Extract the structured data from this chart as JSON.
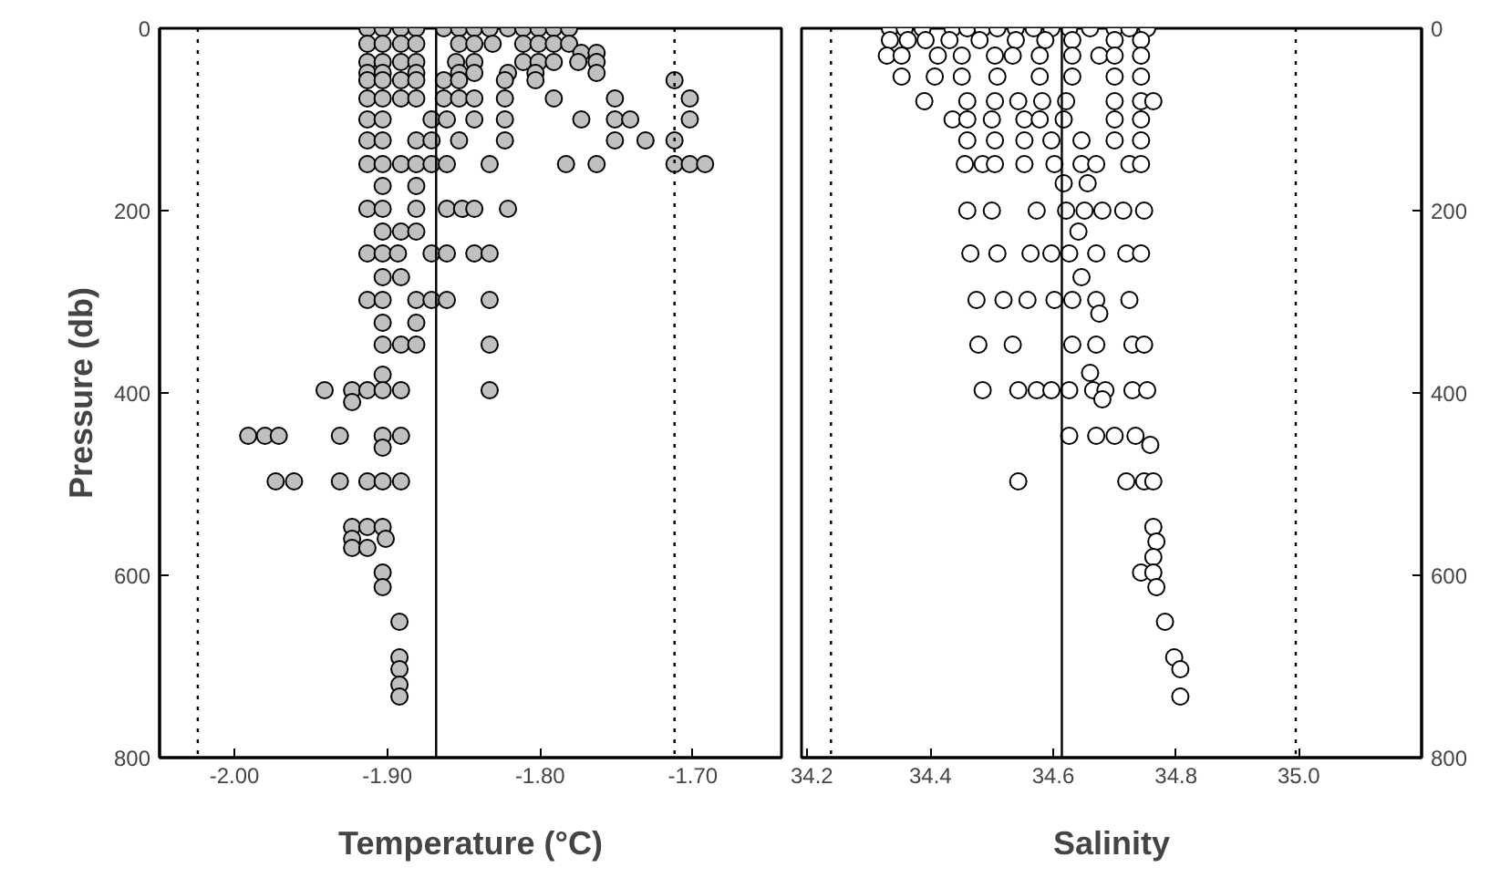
{
  "chart_data": [
    {
      "type": "scatter",
      "xlabel": "Temperature (°C)",
      "ylabel": "Pressure (db)",
      "marker": "circle",
      "grid": false,
      "xlim": [
        -2.049,
        -1.642
      ],
      "xticks": [
        {
          "value": -2.0,
          "label": "-2.00"
        },
        {
          "value": -1.9,
          "label": "-1.90"
        },
        {
          "value": -1.8,
          "label": "-1.80"
        },
        {
          "value": -1.7,
          "label": "-1.70"
        }
      ],
      "ylim": [
        800,
        0
      ],
      "yticks": [
        0,
        200,
        400,
        600,
        800
      ],
      "ref_lines": [
        {
          "axis": "x",
          "value": -2.024,
          "line_style": "dotted"
        },
        {
          "axis": "x",
          "value": -1.868,
          "line_style": "solid"
        },
        {
          "axis": "x",
          "value": -1.712,
          "line_style": "dotted"
        }
      ],
      "series": [
        {
          "color": "#c0c0c0",
          "x": [
            -1.913,
            -1.903,
            -1.891,
            -1.881,
            -1.863,
            -1.853,
            -1.843,
            -1.833,
            -1.821,
            -1.811,
            -1.801,
            -1.791,
            -1.781,
            -1.913,
            -1.903,
            -1.891,
            -1.881,
            -1.853,
            -1.843,
            -1.831,
            -1.811,
            -1.801,
            -1.791,
            -1.781,
            -1.773,
            -1.763,
            -1.913,
            -1.903,
            -1.891,
            -1.881,
            -1.855,
            -1.843,
            -1.811,
            -1.801,
            -1.791,
            -1.775,
            -1.763,
            -1.913,
            -1.903,
            -1.881,
            -1.853,
            -1.843,
            -1.821,
            -1.803,
            -1.763,
            -1.913,
            -1.903,
            -1.891,
            -1.881,
            -1.863,
            -1.853,
            -1.823,
            -1.803,
            -1.712,
            -1.913,
            -1.903,
            -1.891,
            -1.881,
            -1.863,
            -1.853,
            -1.843,
            -1.823,
            -1.791,
            -1.751,
            -1.702,
            -1.913,
            -1.903,
            -1.871,
            -1.861,
            -1.843,
            -1.823,
            -1.773,
            -1.751,
            -1.741,
            -1.702,
            -1.913,
            -1.903,
            -1.881,
            -1.871,
            -1.853,
            -1.823,
            -1.751,
            -1.731,
            -1.712,
            -1.913,
            -1.903,
            -1.891,
            -1.881,
            -1.871,
            -1.861,
            -1.833,
            -1.783,
            -1.763,
            -1.712,
            -1.702,
            -1.692,
            -1.903,
            -1.881,
            -1.913,
            -1.903,
            -1.881,
            -1.861,
            -1.851,
            -1.843,
            -1.821,
            -1.903,
            -1.891,
            -1.881,
            -1.913,
            -1.903,
            -1.893,
            -1.871,
            -1.861,
            -1.843,
            -1.833,
            -1.903,
            -1.891,
            -1.913,
            -1.903,
            -1.881,
            -1.871,
            -1.861,
            -1.833,
            -1.903,
            -1.881,
            -1.903,
            -1.891,
            -1.881,
            -1.833,
            -1.903,
            -1.941,
            -1.923,
            -1.913,
            -1.903,
            -1.891,
            -1.833,
            -1.923,
            -1.991,
            -1.98,
            -1.971,
            -1.931,
            -1.903,
            -1.891,
            -1.903,
            -1.973,
            -1.961,
            -1.931,
            -1.913,
            -1.903,
            -1.891,
            -1.923,
            -1.913,
            -1.903,
            -1.923,
            -1.901,
            -1.923,
            -1.913,
            -1.903,
            -1.903,
            -1.892,
            -1.892,
            -1.892,
            -1.892,
            -1.892
          ],
          "values": [
            0,
            0,
            0,
            0,
            0,
            0,
            0,
            0,
            0,
            0,
            0,
            0,
            0,
            17,
            17,
            17,
            17,
            17,
            17,
            17,
            17,
            17,
            17,
            17,
            27,
            27,
            37,
            37,
            37,
            37,
            37,
            37,
            37,
            37,
            37,
            37,
            37,
            49,
            49,
            49,
            49,
            49,
            49,
            49,
            49,
            57,
            57,
            57,
            57,
            57,
            57,
            57,
            57,
            57,
            77,
            77,
            77,
            77,
            77,
            77,
            77,
            77,
            77,
            77,
            77,
            100,
            100,
            100,
            100,
            100,
            100,
            100,
            100,
            100,
            100,
            123,
            123,
            123,
            123,
            123,
            123,
            123,
            123,
            123,
            149,
            149,
            149,
            149,
            149,
            149,
            149,
            149,
            149,
            149,
            149,
            149,
            173,
            173,
            198,
            198,
            198,
            198,
            198,
            198,
            198,
            223,
            223,
            223,
            247,
            247,
            247,
            247,
            247,
            247,
            247,
            273,
            273,
            298,
            298,
            298,
            298,
            298,
            298,
            323,
            323,
            347,
            347,
            347,
            347,
            380,
            397,
            397,
            397,
            397,
            397,
            397,
            410,
            447,
            447,
            447,
            447,
            447,
            447,
            460,
            497,
            497,
            497,
            497,
            497,
            497,
            547,
            547,
            547,
            560,
            560,
            570,
            570,
            597,
            613,
            651,
            690,
            703,
            720,
            733
          ]
        }
      ]
    },
    {
      "type": "scatter",
      "xlabel": "Salinity",
      "marker": "circle",
      "grid": false,
      "xlim": [
        34.19,
        35.2
      ],
      "xticks": [
        34.2,
        34.4,
        34.6,
        34.8,
        {
          "value": 35.0,
          "label": "35.0"
        }
      ],
      "ylim": [
        800,
        0
      ],
      "yticks": [
        0,
        200,
        400,
        600,
        800
      ],
      "ref_lines": [
        {
          "axis": "x",
          "value": 34.238,
          "line_style": "dotted"
        },
        {
          "axis": "x",
          "value": 34.614,
          "line_style": "solid"
        },
        {
          "axis": "x",
          "value": 34.995,
          "line_style": "dotted"
        }
      ],
      "series": [
        {
          "color": "#ffffff",
          "x": [
            34.334,
            34.358,
            34.387,
            34.436,
            34.46,
            34.485,
            34.509,
            34.539,
            34.568,
            34.597,
            34.626,
            34.66,
            34.7,
            34.724,
            34.753,
            34.334,
            34.363,
            34.392,
            34.431,
            34.48,
            34.539,
            34.587,
            34.631,
            34.7,
            34.743,
            34.329,
            34.353,
            34.412,
            34.451,
            34.505,
            34.534,
            34.578,
            34.631,
            34.675,
            34.7,
            34.743,
            34.353,
            34.407,
            34.451,
            34.509,
            34.578,
            34.631,
            34.7,
            34.743,
            34.39,
            34.46,
            34.505,
            34.543,
            34.582,
            34.621,
            34.7,
            34.743,
            34.763,
            34.436,
            34.46,
            34.5,
            34.553,
            34.578,
            34.617,
            34.7,
            34.743,
            34.46,
            34.505,
            34.553,
            34.597,
            34.646,
            34.7,
            34.743,
            34.456,
            34.485,
            34.505,
            34.553,
            34.602,
            34.646,
            34.67,
            34.724,
            34.743,
            34.617,
            34.656,
            34.46,
            34.5,
            34.573,
            34.621,
            34.651,
            34.68,
            34.714,
            34.748,
            34.641,
            34.465,
            34.509,
            34.563,
            34.597,
            34.626,
            34.67,
            34.719,
            34.743,
            34.646,
            34.475,
            34.519,
            34.558,
            34.602,
            34.631,
            34.67,
            34.724,
            34.675,
            34.478,
            34.534,
            34.631,
            34.67,
            34.729,
            34.748,
            34.66,
            34.485,
            34.543,
            34.573,
            34.597,
            34.626,
            34.665,
            34.685,
            34.729,
            34.753,
            34.68,
            34.626,
            34.67,
            34.7,
            34.734,
            34.758,
            34.543,
            34.719,
            34.748,
            34.763,
            34.763,
            34.768,
            34.763,
            34.743,
            34.763,
            34.768,
            34.782,
            34.797,
            34.807,
            34.807
          ],
          "values": [
            0,
            0,
            0,
            0,
            0,
            0,
            0,
            0,
            0,
            0,
            0,
            0,
            0,
            0,
            0,
            13,
            13,
            13,
            13,
            13,
            13,
            13,
            13,
            13,
            13,
            30,
            30,
            30,
            30,
            30,
            30,
            30,
            30,
            30,
            30,
            30,
            53,
            53,
            53,
            53,
            53,
            53,
            53,
            53,
            80,
            80,
            80,
            80,
            80,
            80,
            80,
            80,
            80,
            100,
            100,
            100,
            100,
            100,
            100,
            100,
            100,
            123,
            123,
            123,
            123,
            123,
            123,
            123,
            149,
            149,
            149,
            149,
            149,
            149,
            149,
            149,
            149,
            170,
            170,
            200,
            200,
            200,
            200,
            200,
            200,
            200,
            200,
            223,
            247,
            247,
            247,
            247,
            247,
            247,
            247,
            247,
            273,
            298,
            298,
            298,
            298,
            298,
            298,
            298,
            313,
            347,
            347,
            347,
            347,
            347,
            347,
            378,
            397,
            397,
            397,
            397,
            397,
            397,
            397,
            397,
            397,
            407,
            447,
            447,
            447,
            447,
            457,
            497,
            497,
            497,
            497,
            547,
            563,
            580,
            597,
            597,
            613,
            651,
            690,
            703,
            733
          ]
        }
      ]
    }
  ]
}
